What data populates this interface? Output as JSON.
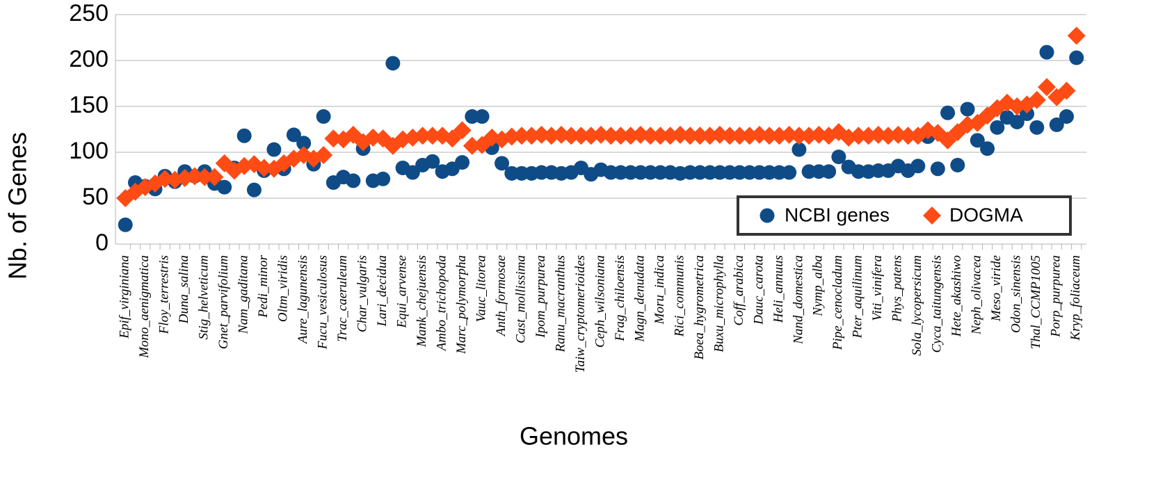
{
  "chart_data": {
    "type": "scatter",
    "x_label": "Genomes",
    "y_label": "Nb. of Genes",
    "categories": [
      "Epif_virginiana",
      null,
      "Mono_aenigmatica",
      null,
      "Floy_terrestris",
      null,
      "Duna_salina",
      null,
      "Stig_helveticum",
      null,
      "Gnet_parvifolium",
      null,
      "Nam_gaditana",
      null,
      "Pedi_minor",
      null,
      "Oltm_viridis",
      null,
      "Aure_lagunensis",
      null,
      "Fucu_vesiculosus",
      null,
      "Trac_caeruleum",
      null,
      "Char_vulgaris",
      null,
      "Lari_decidua",
      null,
      "Equi_arvense",
      null,
      "Mank_chejuensis",
      null,
      "Ambo_trichopoda",
      null,
      "Marc_polymorpha",
      null,
      "Vauc_litorea",
      null,
      "Anth_formosae",
      null,
      "Cast_mollissima",
      null,
      "Ipom_purpurea",
      null,
      "Ranu_macranthus",
      null,
      "Taiw_cryptomerioides",
      null,
      "Ceph_wilsoniana",
      null,
      "Frag_chiloensis",
      null,
      "Magn_denudata",
      null,
      "Moru_indica",
      null,
      "Rici_communis",
      null,
      "Boea_hygrometrica",
      null,
      "Buxu_microphylla",
      null,
      "Coff_arabica",
      null,
      "Dauc_carota",
      null,
      "Heli_annuus",
      null,
      "Nand_domestica",
      null,
      "Nymp_alba",
      null,
      "Pipe_cenocladum",
      null,
      "Pter_aquilinum",
      null,
      "Viti_vinifera",
      null,
      "Phys_patens",
      null,
      "Sola_lycopersicum",
      null,
      "Cyca_taitungensis",
      null,
      "Hete_akashiwo",
      null,
      "Neph_olivacea",
      null,
      "Meso_viride",
      null,
      "Odon_sinensis",
      null,
      "Thal_CCMP1005",
      null,
      "Porp_purpurea",
      null,
      "Kryp_foliaceum"
    ],
    "series": [
      {
        "name": "NCBI genes",
        "color": "#0f4c87",
        "marker": "circle",
        "values": [
          21,
          67,
          63,
          60,
          74,
          68,
          79,
          74,
          79,
          66,
          62,
          83,
          118,
          59,
          80,
          103,
          82,
          119,
          110,
          87,
          139,
          67,
          73,
          69,
          104,
          69,
          71,
          197,
          83,
          78,
          86,
          90,
          79,
          82,
          89,
          139,
          139,
          105,
          88,
          77,
          77,
          77,
          78,
          78,
          77,
          78,
          83,
          76,
          81,
          78,
          78,
          78,
          78,
          78,
          78,
          78,
          77,
          78,
          78,
          78,
          78,
          78,
          78,
          78,
          78,
          78,
          78,
          78,
          103,
          79,
          79,
          79,
          95,
          84,
          79,
          79,
          80,
          80,
          85,
          80,
          85,
          117,
          82,
          143,
          86,
          147,
          113,
          104,
          127,
          138,
          133,
          142,
          127,
          209,
          130,
          139,
          203
        ]
      },
      {
        "name": "DOGMA",
        "color": "#ff4b14",
        "marker": "diamond",
        "values": [
          50,
          57,
          62,
          66,
          71,
          70,
          72,
          74,
          73,
          73,
          88,
          80,
          85,
          87,
          83,
          82,
          88,
          93,
          97,
          93,
          97,
          115,
          114,
          119,
          111,
          116,
          115,
          107,
          114,
          116,
          118,
          118,
          118,
          115,
          124,
          107,
          108,
          116,
          114,
          117,
          118,
          118,
          119,
          118,
          119,
          118,
          118,
          118,
          119,
          118,
          118,
          118,
          119,
          118,
          118,
          118,
          119,
          118,
          118,
          118,
          119,
          118,
          118,
          118,
          119,
          118,
          118,
          119,
          118,
          118,
          119,
          118,
          122,
          116,
          118,
          118,
          119,
          118,
          119,
          118,
          118,
          124,
          121,
          113,
          122,
          130,
          132,
          140,
          148,
          154,
          150,
          152,
          157,
          171,
          160,
          167,
          227
        ]
      }
    ],
    "ylim": [
      0,
      250
    ],
    "yticks": [
      0,
      50,
      100,
      150,
      200,
      250
    ],
    "grid": true,
    "legend": "lower right"
  }
}
